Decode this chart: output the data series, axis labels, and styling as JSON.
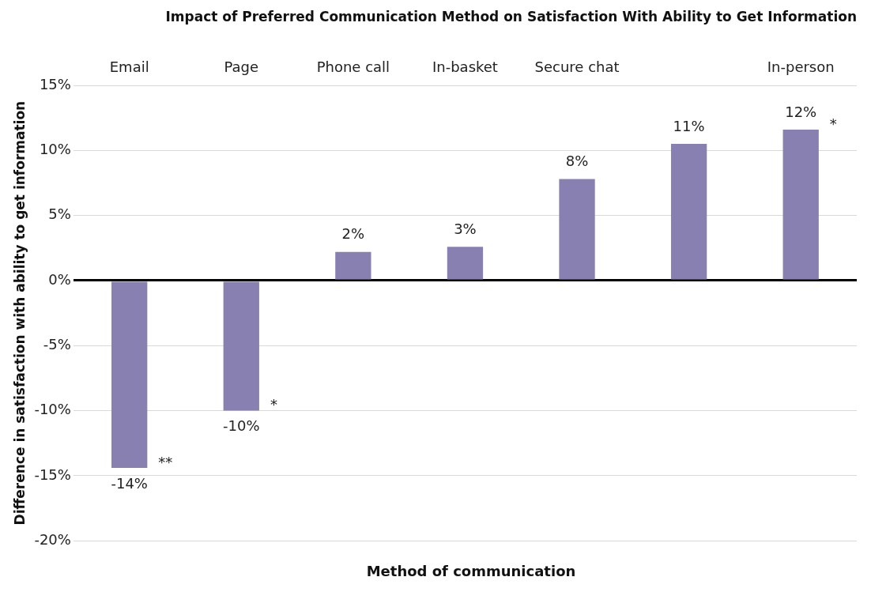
{
  "chart_data": {
    "type": "bar",
    "title": "Impact of Preferred Communication Method on Satisfaction With Ability to Get Information",
    "xlabel": "Method of communication",
    "ylabel": "Difference in satisfaction with ability to get information",
    "categories": [
      "Email",
      "Page",
      "Phone call",
      "In-basket",
      "Secure chat",
      null,
      "In-person"
    ],
    "values": [
      -14.4,
      -10.0,
      2.2,
      2.6,
      7.8,
      10.5,
      11.6
    ],
    "value_labels": [
      "-14%",
      "-10%",
      "2%",
      "3%",
      "8%",
      "11%",
      "12%"
    ],
    "color": "#8780b0",
    "ylim": [
      -20,
      15
    ],
    "yticks": [
      {
        "value": -20,
        "label": "-20%"
      },
      {
        "value": -15,
        "label": "-15%"
      },
      {
        "value": -10,
        "label": "-10%"
      },
      {
        "value": -5,
        "label": "-5%"
      },
      {
        "value": 0,
        "label": "0%"
      },
      {
        "value": 5,
        "label": "5%"
      },
      {
        "value": 10,
        "label": "10%"
      },
      {
        "value": 15,
        "label": "15%"
      }
    ],
    "grid": "y",
    "legend": false,
    "annotations": [
      {
        "text": "**",
        "x": "Email",
        "y": -14.4
      },
      {
        "text": "*",
        "x": "Page",
        "y": -10.0
      },
      {
        "text": "*",
        "x": "In-person",
        "y": 11.6
      }
    ]
  }
}
